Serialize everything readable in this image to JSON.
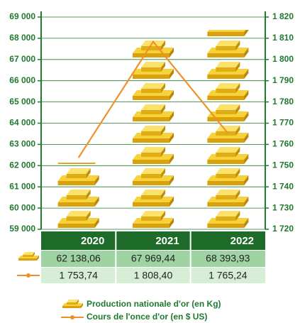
{
  "chart_data": {
    "type": "pictograph-line",
    "categories": [
      "2020",
      "2021",
      "2022"
    ],
    "series": [
      {
        "name": "Production nationale d'or (en Kg)",
        "color": "#f2c01e",
        "values": [
          62138.06,
          67969.44,
          68393.93
        ],
        "value_labels": [
          "62 138,06",
          "67 969,44",
          "68 393,93"
        ]
      },
      {
        "name": "Cours de l'once d'or (en $ US)",
        "color": "#f0902a",
        "axis": "y2",
        "values": [
          1753.74,
          1808.4,
          1765.24
        ],
        "value_labels": [
          "1 753,74",
          "1 808,40",
          "1 765,24"
        ]
      }
    ],
    "ylim": [
      59000,
      69000
    ],
    "yticks": [
      {
        "value": 59000,
        "label": "59 000"
      },
      {
        "value": 60000,
        "label": "60 000"
      },
      {
        "value": 61000,
        "label": "61 000"
      },
      {
        "value": 62000,
        "label": "62 000"
      },
      {
        "value": 63000,
        "label": "63 000"
      },
      {
        "value": 64000,
        "label": "64 000"
      },
      {
        "value": 65000,
        "label": "65 000"
      },
      {
        "value": 66000,
        "label": "66 000"
      },
      {
        "value": 67000,
        "label": "67 000"
      },
      {
        "value": 68000,
        "label": "68 000"
      },
      {
        "value": 69000,
        "label": "69 000"
      }
    ],
    "y2lim": [
      1720,
      1820
    ],
    "y2ticks": [
      {
        "value": 1720,
        "label": "1 720"
      },
      {
        "value": 1730,
        "label": "1 730"
      },
      {
        "value": 1740,
        "label": "1 740"
      },
      {
        "value": 1750,
        "label": "1 750"
      },
      {
        "value": 1760,
        "label": "1 760"
      },
      {
        "value": 1770,
        "label": "1 770"
      },
      {
        "value": 1780,
        "label": "1 780"
      },
      {
        "value": 1790,
        "label": "1 790"
      },
      {
        "value": 1800,
        "label": "1 800"
      },
      {
        "value": 1810,
        "label": "1 810"
      },
      {
        "value": 1820,
        "label": "1 820"
      }
    ],
    "grid": true,
    "axis_color": "#1e7a2e"
  }
}
